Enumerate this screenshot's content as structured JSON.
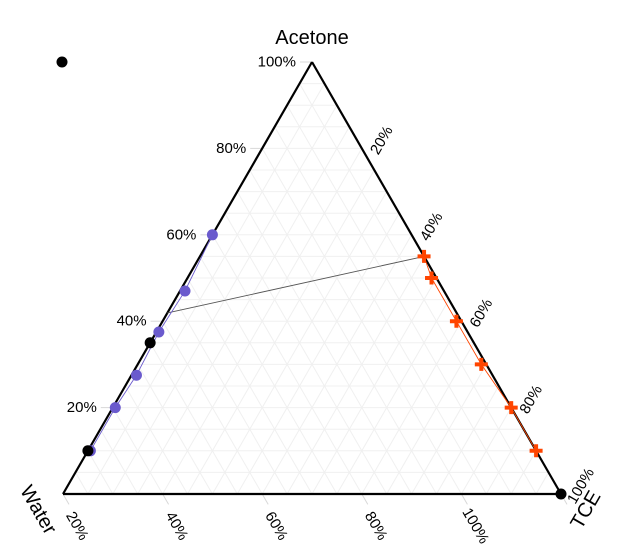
{
  "chart_data": {
    "type": "ternary",
    "vertices": {
      "top": "Acetone",
      "left": "Water",
      "right": "TCE"
    },
    "tick_labels": {
      "acetone": [
        "20%",
        "40%",
        "60%",
        "80%",
        "100%"
      ],
      "tce": [
        "20%",
        "40%",
        "60%",
        "80%",
        "100%"
      ],
      "water": [
        "100%",
        "80%",
        "60%",
        "40%",
        "20%"
      ]
    },
    "grid": true,
    "colors": {
      "water_rich": "#6a5acd",
      "tce_rich": "#ff4500",
      "tie_line": "#555555",
      "pure_points": "#000000"
    },
    "series": [
      {
        "marker": "circle",
        "color": "#6a5acd",
        "points": [
          {
            "water": 40,
            "acetone": 60,
            "tce": 0
          },
          {
            "water": 52,
            "acetone": 47,
            "tce": 1
          },
          {
            "water": 62,
            "acetone": 37.5,
            "tce": 0.5
          },
          {
            "water": 71.5,
            "acetone": 27.5,
            "tce": 1
          },
          {
            "water": 79.5,
            "acetone": 20,
            "tce": 0.5
          },
          {
            "water": 89.5,
            "acetone": 10,
            "tce": 0.5
          }
        ]
      },
      {
        "marker": "cross",
        "color": "#ff4500",
        "points": [
          {
            "water": 0,
            "acetone": 55,
            "tce": 45
          },
          {
            "water": 1,
            "acetone": 50,
            "tce": 49
          },
          {
            "water": 1,
            "acetone": 40,
            "tce": 59
          },
          {
            "water": 1,
            "acetone": 30,
            "tce": 69
          },
          {
            "water": 0,
            "acetone": 20,
            "tce": 80
          },
          {
            "water": 0,
            "acetone": 10,
            "tce": 90
          }
        ]
      }
    ],
    "tie_lines": [
      [
        {
          "water": 61,
          "acetone": 44,
          "tce": 0
        },
        {
          "water": 0,
          "acetone": 55,
          "tce": 45
        }
      ]
    ],
    "black_points": [
      {
        "water": 65,
        "acetone": 35,
        "tce": 0
      },
      {
        "water": 90,
        "acetone": 10,
        "tce": 0
      },
      {
        "water": 0,
        "acetone": 0,
        "tce": 100
      }
    ]
  }
}
